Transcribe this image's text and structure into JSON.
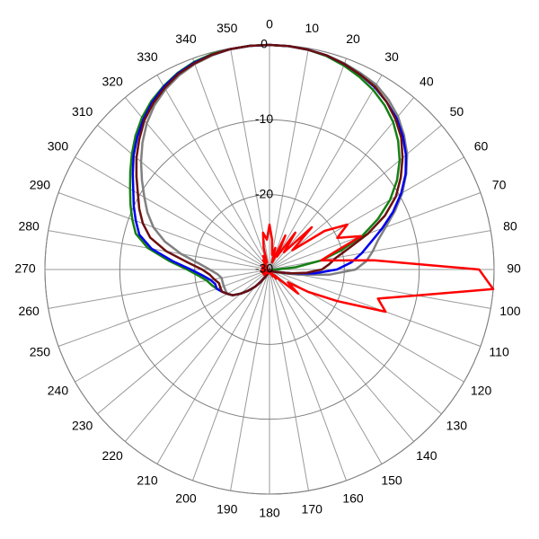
{
  "chart_data": {
    "type": "polar",
    "theta": [
      0,
      5,
      10,
      15,
      20,
      25,
      30,
      35,
      40,
      45,
      50,
      55,
      60,
      65,
      70,
      75,
      80,
      85,
      90,
      95,
      100,
      105,
      110,
      115,
      120,
      125,
      130,
      135,
      140,
      145,
      150,
      155,
      160,
      165,
      170,
      175,
      180,
      185,
      190,
      195,
      200,
      205,
      210,
      215,
      220,
      225,
      230,
      235,
      240,
      245,
      250,
      255,
      260,
      265,
      270,
      275,
      280,
      285,
      290,
      295,
      300,
      305,
      310,
      315,
      320,
      325,
      330,
      335,
      340,
      345,
      350,
      355
    ],
    "rlim": [
      -30,
      0
    ],
    "rticks": [
      -30,
      -20,
      -10,
      0
    ],
    "thetaticks": [
      0,
      10,
      20,
      30,
      40,
      50,
      60,
      70,
      80,
      90,
      100,
      110,
      120,
      130,
      140,
      150,
      160,
      170,
      180,
      190,
      200,
      210,
      220,
      230,
      240,
      250,
      260,
      270,
      280,
      290,
      300,
      310,
      320,
      330,
      340,
      350
    ],
    "grid": true,
    "series": [
      {
        "color": "#808080",
        "values": [
          0,
          -0.05,
          -0.2,
          -0.4,
          -0.7,
          -1.1,
          -1.5,
          -2.3,
          -3.3,
          -4.6,
          -6,
          -7.7,
          -9.5,
          -11.5,
          -13.5,
          -15,
          -16,
          -17,
          -18.5,
          -22,
          -26,
          -28,
          -29,
          -29.3,
          -29.5,
          -29.6,
          -29.7,
          -29.8,
          -29.8,
          -29.9,
          -29.9,
          -29.9,
          -30,
          -30,
          -30,
          -30,
          -30,
          -30,
          -29.9,
          -29.8,
          -29.6,
          -29.3,
          -28.8,
          -28,
          -27,
          -26,
          -25,
          -24,
          -23.5,
          -23.5,
          -23.5,
          -23.5,
          -23.5,
          -23,
          -22,
          -20.5,
          -18,
          -15.5,
          -13.5,
          -12,
          -10.7,
          -9.2,
          -7.6,
          -6,
          -4.5,
          -3.2,
          -2.2,
          -1.4,
          -0.8,
          -0.4,
          -0.1,
          0
        ]
      },
      {
        "color": "#138013",
        "values": [
          0,
          -0.05,
          -0.2,
          -0.5,
          -1,
          -1.6,
          -2.3,
          -3.2,
          -4.3,
          -5.7,
          -7.3,
          -9.2,
          -11.4,
          -14,
          -16.8,
          -20,
          -23,
          -26.5,
          -29,
          -29.5,
          -29.5,
          -29.5,
          -29.6,
          -29.6,
          -29.7,
          -29.7,
          -29.8,
          -29.8,
          -29.8,
          -29.9,
          -29.9,
          -29.9,
          -30,
          -30,
          -30,
          -30,
          -30,
          -30,
          -29.9,
          -29.8,
          -29.6,
          -29.3,
          -28.8,
          -28,
          -27,
          -26,
          -25,
          -24,
          -23.5,
          -23,
          -22.5,
          -22,
          -21.5,
          -20.5,
          -19,
          -16.5,
          -13.5,
          -11.5,
          -10.5,
          -9.5,
          -8.5,
          -7.3,
          -6,
          -4.7,
          -3.5,
          -2.5,
          -1.7,
          -1,
          -0.5,
          -0.2,
          -0.1,
          0
        ]
      },
      {
        "color": "#0000ee",
        "values": [
          0,
          -0.05,
          -0.2,
          -0.4,
          -0.8,
          -1.3,
          -1.9,
          -2.7,
          -3.6,
          -4.8,
          -6.2,
          -7.8,
          -9.7,
          -11.8,
          -14,
          -16,
          -17.5,
          -19,
          -21,
          -24,
          -27,
          -28.5,
          -29,
          -29.3,
          -29.5,
          -29.6,
          -29.7,
          -29.8,
          -29.8,
          -29.9,
          -29.9,
          -29.9,
          -30,
          -30,
          -30,
          -30,
          -30,
          -30,
          -29.9,
          -29.8,
          -29.6,
          -29.3,
          -28.8,
          -28,
          -27,
          -26,
          -25,
          -24,
          -23.5,
          -23,
          -22.5,
          -22.5,
          -22,
          -21,
          -19.5,
          -17,
          -14,
          -12,
          -11,
          -10,
          -9,
          -7.7,
          -6.3,
          -5,
          -3.8,
          -2.7,
          -1.8,
          -1.1,
          -0.6,
          -0.3,
          -0.1,
          0
        ]
      },
      {
        "color": "#6b0f0f",
        "values": [
          0,
          -0.05,
          -0.2,
          -0.4,
          -0.8,
          -1.3,
          -1.8,
          -2.7,
          -3.8,
          -5.1,
          -6.8,
          -8.6,
          -10.5,
          -13,
          -16,
          -19,
          -21,
          -22,
          -23,
          -25,
          -27,
          -28.5,
          -29,
          -29.3,
          -29.5,
          -29.6,
          -29.7,
          -29.8,
          -29.8,
          -29.9,
          -29.9,
          -29.9,
          -30,
          -30,
          -30,
          -30,
          -30,
          -30,
          -29.9,
          -29.8,
          -29.6,
          -29.3,
          -28.8,
          -28,
          -27,
          -26,
          -25,
          -24,
          -23.5,
          -23,
          -23,
          -23,
          -22.5,
          -22,
          -21,
          -19,
          -16,
          -13.5,
          -12,
          -10.8,
          -9.7,
          -8.3,
          -6.8,
          -5.4,
          -4,
          -2.9,
          -2,
          -1.2,
          -0.7,
          -0.3,
          -0.1,
          0
        ]
      },
      {
        "color": "#ff0000",
        "values": [
          -24,
          -26,
          -28,
          -27,
          -29,
          -25,
          -28,
          -24,
          -27,
          -22,
          -26,
          -21,
          -18,
          -20,
          -17,
          -21,
          -23,
          -16,
          -2,
          0,
          -10,
          -15,
          -13.5,
          -20,
          -24,
          -27,
          -25,
          -28,
          -29,
          -28.5,
          -29.5,
          -29,
          -29.5,
          -29.5,
          -29.5,
          -29.5,
          -29.5,
          -29.5,
          -29.5,
          -29.5,
          -29.5,
          -29.5,
          -29.5,
          -29.5,
          -29.5,
          -29,
          -29.5,
          -29,
          -29.5,
          -29,
          -29.5,
          -29,
          -29.5,
          -29,
          -29.5,
          -29,
          -29.5,
          -29,
          -29.5,
          -29,
          -29.5,
          -29,
          -29.5,
          -29,
          -29.5,
          -28.5,
          -29,
          -28,
          -29,
          -27,
          -25,
          -26
        ]
      }
    ]
  }
}
